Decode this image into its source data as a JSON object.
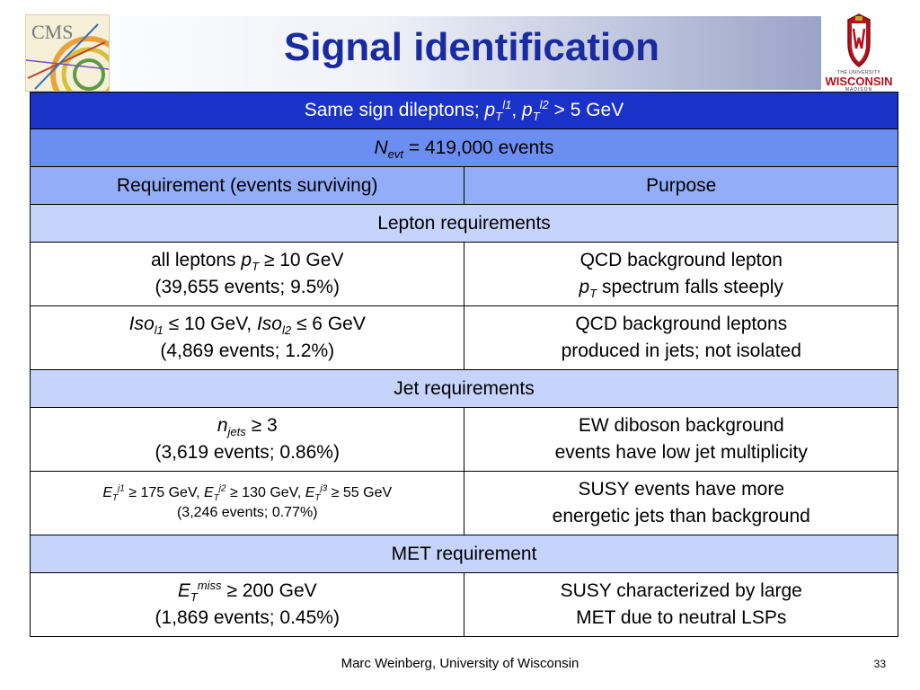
{
  "slide": {
    "title": "Signal identification",
    "footer": "Marc Weinberg, University of Wisconsin",
    "page_number": "33"
  },
  "logos": {
    "left_logo_text": "CMS",
    "right_logo_line1": "THE UNIVERSITY",
    "right_logo_line2": "of",
    "right_logo_name": "WISCONSIN",
    "right_logo_line3": "MADISON"
  },
  "table": {
    "title_row": {
      "pre": "Same sign dileptons; ",
      "p1": "p",
      "p1_sub": "T",
      "p1_sup": "l1",
      "sep": ", ",
      "p2": "p",
      "p2_sub": "T",
      "p2_sup": "l2",
      "post": " > 5 GeV"
    },
    "nevt_row": {
      "var": "N",
      "sub": "evt",
      "post": " = 419,000 events"
    },
    "headers": {
      "requirement": "Requirement (events surviving)",
      "purpose": "Purpose"
    },
    "sections": {
      "lepton": "Lepton requirements",
      "jet": "Jet requirements",
      "met": "MET requirement"
    },
    "rows": {
      "pt_leptons": {
        "req_pre": "all leptons ",
        "req_var": "p",
        "req_sub": "T",
        "req_post": " ≥ 10 GeV",
        "events": "(39,655 events; 9.5%)",
        "purpose_line1": "QCD background lepton",
        "purpose_var": "p",
        "purpose_sub": "T",
        "purpose_post": " spectrum falls steeply"
      },
      "isolation": {
        "var1": "Iso",
        "sub1": "l1",
        "mid": " ≤ 10 GeV, ",
        "var2": "Iso",
        "sub2": "l2",
        "post": " ≤ 6 GeV",
        "events": "(4,869 events; 1.2%)",
        "purpose_line1": "QCD background leptons",
        "purpose_line2": "produced in jets; not isolated"
      },
      "njets": {
        "var": "n",
        "sub": "jets",
        "post": " ≥ 3",
        "events": "(3,619 events; 0.86%)",
        "purpose_line1": "EW diboson background",
        "purpose_line2": "events have low jet multiplicity"
      },
      "jet_et": {
        "e1": "E",
        "e1_sub": "T",
        "e1_sup": "j1",
        "e1_post": " ≥ 175 GeV, ",
        "e2": "E",
        "e2_sub": "T",
        "e2_sup": "j2",
        "e2_post": " ≥ 130 GeV, ",
        "e3": "E",
        "e3_sub": "T",
        "e3_sup": "j3",
        "e3_post": " ≥ 55 GeV",
        "events": "(3,246 events; 0.77%)",
        "purpose_line1": "SUSY events have more",
        "purpose_line2": "energetic jets than background"
      },
      "met": {
        "var": "E",
        "sub": "T",
        "sup": "miss",
        "post": " ≥ 200 GeV",
        "events": "(1,869 events; 0.45%)",
        "purpose_line1": "SUSY characterized by large",
        "purpose_line2": "MET due to neutral LSPs"
      }
    }
  }
}
